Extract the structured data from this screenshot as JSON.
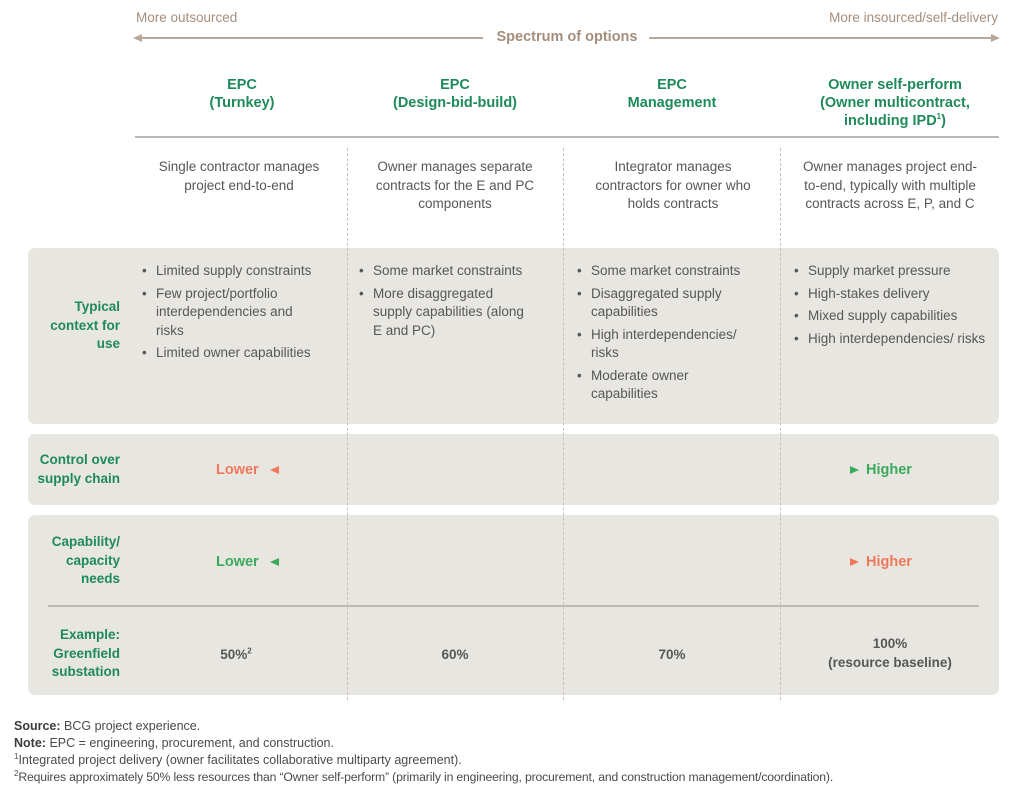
{
  "spectrum": {
    "left_label": "More outsourced",
    "right_label": "More insourced/self-delivery",
    "center_label": "Spectrum of options",
    "color": "#a58e7c"
  },
  "columns": [
    {
      "title_line1": "EPC",
      "title_line2": "(Turnkey)",
      "description": "Single contractor manages project end-to-end",
      "context": [
        "Limited supply constraints",
        "Few project/portfolio interdependencies and risks",
        "Limited owner capabilities"
      ],
      "example_value": "50%",
      "example_footnote": "2"
    },
    {
      "title_line1": "EPC",
      "title_line2": "(Design-bid-build)",
      "description": "Owner manages separate contracts for the E and PC components",
      "context": [
        "Some market constraints",
        "More disaggregated supply capabilities (along E and PC)"
      ],
      "example_value": "60%"
    },
    {
      "title_line1": "EPC",
      "title_line2": "Management",
      "description": "Integrator manages contractors for owner who holds contracts",
      "context": [
        "Some market constraints",
        "Disaggregated supply capabilities",
        "High interdependencies/ risks",
        "Moderate owner capabilities"
      ],
      "example_value": "70%"
    },
    {
      "title_line1": "Owner self-perform",
      "title_line2": "(Owner multicontract,",
      "title_line3": "including IPD",
      "title_line3_footnote": "1",
      "title_line3_end": ")",
      "description": "Owner manages project end-to-end, typically with multiple contracts across E, P, and C",
      "context": [
        "Supply market pressure",
        "High-stakes delivery",
        "Mixed supply capabilities",
        "High interdependencies/ risks"
      ],
      "example_value": "100%",
      "example_note": "(resource baseline)"
    }
  ],
  "rows": {
    "context_label": "Typical context for use",
    "control": {
      "label": "Control over supply chain",
      "low": "Lower",
      "high": "Higher",
      "low_color": "#f0785a",
      "high_color": "#3aaa5c"
    },
    "capability": {
      "label": "Capability/ capacity needs",
      "low": "Lower",
      "high": "Higher",
      "low_color": "#3aaa5c",
      "high_color": "#f0785a"
    },
    "example_label": "Example: Greenfield substation"
  },
  "footnotes": {
    "source_label": "Source:",
    "source_text": "BCG project experience.",
    "note_label": "Note:",
    "note_text": "EPC = engineering, procurement, and construction.",
    "fn1_mark": "1",
    "fn1_text": "Integrated project delivery (owner facilitates collaborative multiparty agreement).",
    "fn2_mark": "2",
    "fn2_text": "Requires approximately 50% less resources than “Owner self-perform” (primarily in engineering, procurement, and construction management/coordination)."
  },
  "colors": {
    "accent_green": "#1e8a5a",
    "panel_bg": "#e8e6e1",
    "tan": "#a58e7c"
  }
}
